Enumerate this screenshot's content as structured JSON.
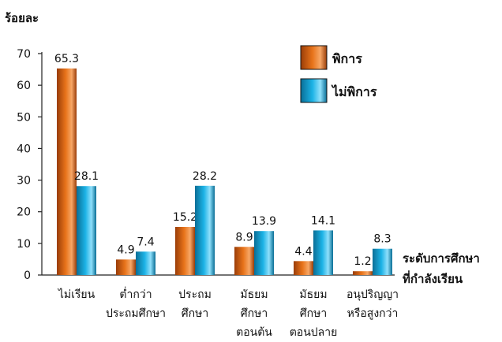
{
  "chart_data": {
    "type": "bar",
    "ylabel": "ร้อยละ",
    "xlabel_lines": [
      "ระดับการศึกษา",
      "ที่กำลังเรียน"
    ],
    "ylim": [
      0,
      70
    ],
    "yticks": [
      0,
      10,
      20,
      30,
      40,
      50,
      60,
      70
    ],
    "categories": [
      [
        "ไม่เรียน"
      ],
      [
        "ต่ำกว่า",
        "ประถมศึกษา"
      ],
      [
        "ประถม",
        "ศึกษา"
      ],
      [
        "มัธยม",
        "ศึกษา",
        "ตอนต้น"
      ],
      [
        "มัธยม",
        "ศึกษา",
        "ตอนปลาย"
      ],
      [
        "อนุปริญญา",
        "หรือสูงกว่า"
      ]
    ],
    "series": [
      {
        "name": "พิการ",
        "values": [
          65.3,
          4.9,
          15.2,
          8.9,
          4.4,
          1.2
        ],
        "color": "#e8731a",
        "color_dark": "#9a3d08",
        "color_light": "#f7a766"
      },
      {
        "name": "ไม่พิการ",
        "values": [
          28.1,
          7.4,
          28.2,
          13.9,
          14.1,
          8.3
        ],
        "color": "#1cb3e6",
        "color_dark": "#0a6e96",
        "color_light": "#8fe0fb"
      }
    ],
    "legend_position": "top-right",
    "grid": false
  }
}
